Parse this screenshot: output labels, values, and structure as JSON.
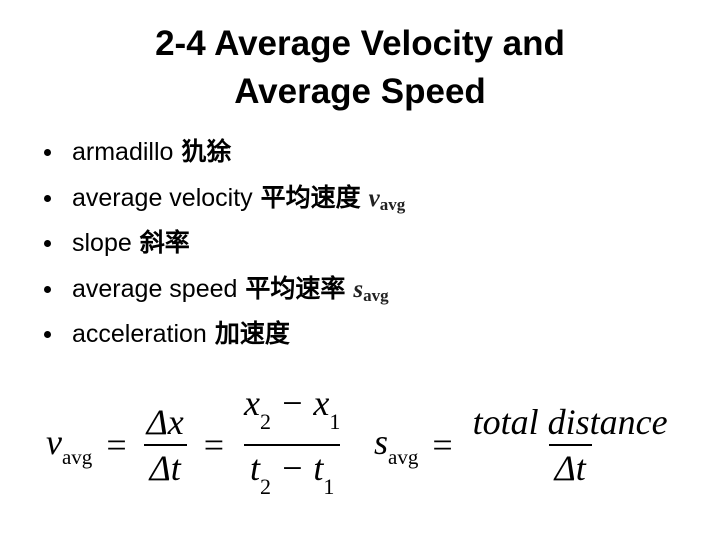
{
  "title": "2-4 Average Velocity and Average Speed",
  "bullets": [
    {
      "term": "armadillo",
      "chinese": "犰狳"
    },
    {
      "term": "average velocity",
      "chinese": "平均速度",
      "symbol": "v",
      "subscript": "avg"
    },
    {
      "term": "slope",
      "chinese": "斜率"
    },
    {
      "term": "average speed",
      "chinese": "平均速率",
      "symbol": "s",
      "subscript": "avg"
    },
    {
      "term": "acceleration",
      "chinese": "加速度"
    }
  ],
  "equations": [
    {
      "symbol": "v",
      "subscript": "avg",
      "relation": "=",
      "fractions": [
        {
          "numerator": [
            "Δx"
          ],
          "denominator": [
            "Δt"
          ]
        },
        {
          "numerator": [
            "x",
            "2",
            " − x",
            "1"
          ],
          "denominator": [
            "t",
            "2",
            " − t",
            "1"
          ]
        }
      ]
    },
    {
      "symbol": "s",
      "subscript": "avg",
      "relation": "=",
      "fractions": [
        {
          "numerator": [
            "total distance"
          ],
          "denominator": [
            "Δt"
          ]
        }
      ]
    }
  ]
}
